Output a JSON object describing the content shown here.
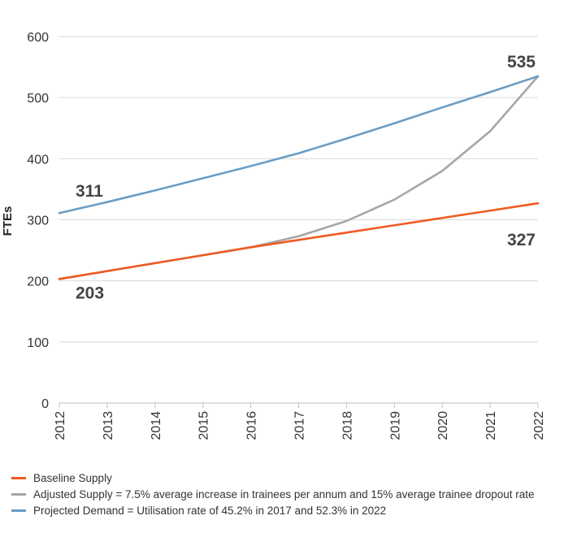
{
  "chart_data": {
    "type": "line",
    "title": "",
    "xlabel": "",
    "ylabel": "FTEs",
    "x": [
      "2012",
      "2013",
      "2014",
      "2015",
      "2016",
      "2017",
      "2018",
      "2019",
      "2020",
      "2021",
      "2022"
    ],
    "yticks": [
      "0",
      "100",
      "200",
      "300",
      "400",
      "500",
      "600"
    ],
    "ylim": [
      0,
      600
    ],
    "grid": true,
    "legend_position": "bottom",
    "series": [
      {
        "name": "Baseline Supply",
        "color": "#f05a22",
        "values": [
          203,
          216,
          229,
          242,
          255,
          267,
          279,
          291,
          303,
          315,
          327
        ]
      },
      {
        "name": "Adjusted Supply = 7.5% average increase in trainees per annum and 15% average trainee dropout rate",
        "color": "#a6a6a6",
        "values": [
          203,
          216,
          229,
          242,
          255,
          273,
          298,
          333,
          380,
          445,
          535
        ]
      },
      {
        "name": "Projected Demand = Utilisation rate of 45.2% in 2017 and 52.3% in 2022",
        "color": "#6a9dc4",
        "values": [
          311,
          329,
          348,
          368,
          388,
          409,
          433,
          458,
          484,
          509,
          535
        ]
      }
    ],
    "annotations": [
      {
        "series": 2,
        "index": 0,
        "text": "311"
      },
      {
        "series": 0,
        "index": 0,
        "text": "203"
      },
      {
        "series": 2,
        "index": 10,
        "text": "535"
      },
      {
        "series": 0,
        "index": 10,
        "text": "327"
      }
    ]
  }
}
